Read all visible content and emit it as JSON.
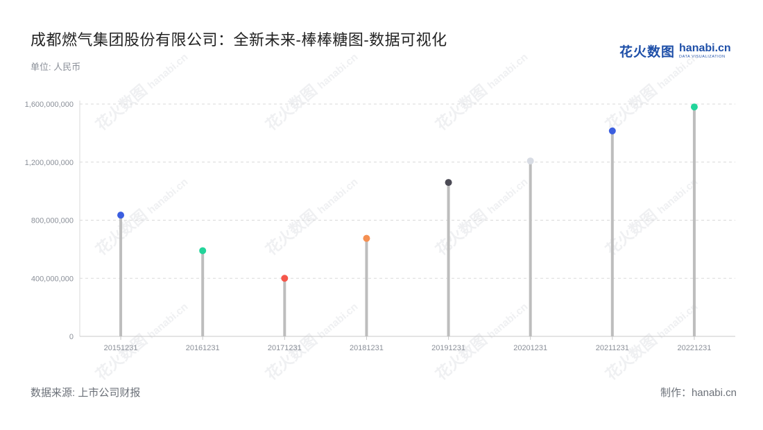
{
  "title": "成都燃气集团股份有限公司：全新未来-棒棒糖图-数据可视化",
  "unit_label": "单位: 人民币",
  "source_label": "数据来源: 上市公司财报",
  "maker_label": "制作：hanabi.cn",
  "logo": {
    "text_cn": "花火数图",
    "text_en": "hanabi.cn",
    "subtext": "DATA VISUALIZATION",
    "color": "#1e4fa8"
  },
  "watermark": {
    "text_cn": "花火数图",
    "text_en": "hanabi.cn"
  },
  "chart_data": {
    "type": "lollipop",
    "categories": [
      "20151231",
      "20161231",
      "20171231",
      "20181231",
      "20191231",
      "20201231",
      "20211231",
      "20221231"
    ],
    "values": [
      835000000,
      590000000,
      400000000,
      675000000,
      1060000000,
      1208000000,
      1415000000,
      1580000000
    ],
    "point_colors": [
      "#3b5ee0",
      "#22d49a",
      "#f5574b",
      "#f59052",
      "#4c4b55",
      "#d8dce4",
      "#3b5ee0",
      "#22d49a"
    ],
    "stem_color": "#bdbdbd",
    "ylim": [
      0,
      1600000000
    ],
    "yticks": [
      0,
      400000000,
      800000000,
      1200000000,
      1600000000
    ],
    "ytick_labels": [
      "0",
      "400,000,000",
      "800,000,000",
      "1,200,000,000",
      "1,600,000,000"
    ],
    "grid": true
  }
}
